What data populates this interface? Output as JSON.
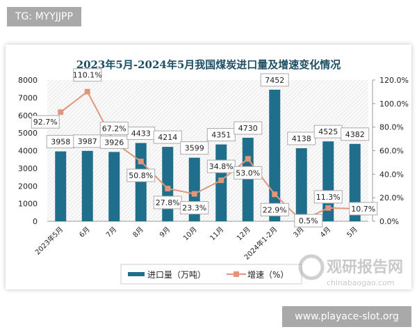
{
  "top_tag": "TG: MYYJJPP",
  "site_label": "www.playace-slot.org",
  "watermark": {
    "cn": "观研报告网",
    "en": "chinabaogao.com"
  },
  "chart_data": {
    "type": "bar+line",
    "title": "2023年5月-2024年5月我国煤炭进口量及增速变化情况",
    "categories": [
      "2023年5月",
      "6月",
      "7月",
      "8月",
      "9月",
      "10月",
      "11月",
      "12月",
      "2024年1-2月",
      "3月",
      "4月",
      "5月"
    ],
    "series": [
      {
        "name": "进口量（万吨）",
        "type": "bar",
        "axis": "left",
        "color": "#1f6e8c",
        "values": [
          3958,
          3987,
          3926,
          4433,
          4214,
          3599,
          4351,
          4730,
          7452,
          4138,
          4525,
          4382
        ],
        "labels": [
          "3958",
          "3987",
          "3926",
          "4433",
          "4214",
          "3599",
          "4351",
          "4730",
          "7452",
          "4138",
          "4525",
          "4382"
        ]
      },
      {
        "name": "增速（%）",
        "type": "line",
        "axis": "right",
        "color": "#e0967a",
        "values": [
          92.7,
          110.1,
          67.2,
          50.8,
          27.8,
          23.3,
          34.8,
          53.0,
          22.9,
          0.5,
          11.3,
          10.7
        ],
        "labels": [
          "92.7%",
          "110.1%",
          "67.2%",
          "50.8%",
          "27.8%",
          "23.3%",
          "34.8%",
          "53.0%",
          "22.9%",
          "0.5%",
          "11.3%",
          "10.7%"
        ]
      }
    ],
    "y_left": {
      "range": [
        0,
        8000
      ],
      "ticks": [
        "0",
        "1000",
        "2000",
        "3000",
        "4000",
        "5000",
        "6000",
        "7000",
        "8000"
      ]
    },
    "y_right": {
      "range": [
        0,
        120
      ],
      "ticks": [
        "0.0%",
        "20.0%",
        "40.0%",
        "60.0%",
        "80.0%",
        "100.0%",
        "120.0%"
      ]
    },
    "grid": false,
    "legend": "bottom"
  }
}
